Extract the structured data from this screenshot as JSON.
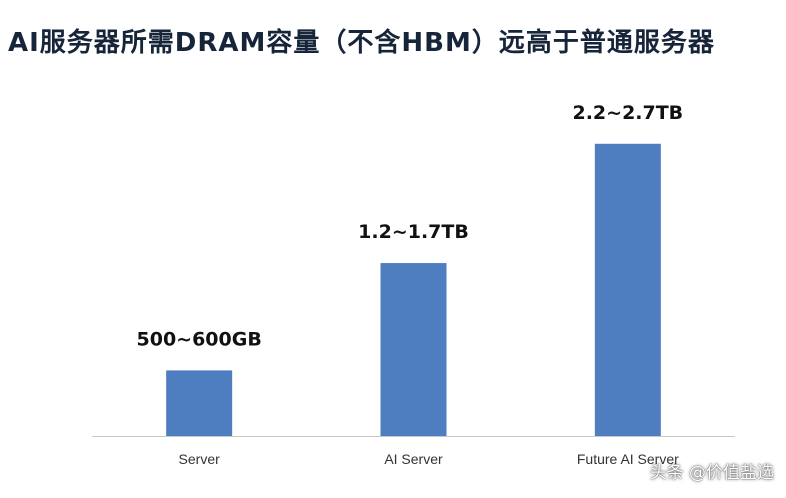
{
  "chart_data": {
    "type": "bar",
    "title": "AI服务器所需DRAM容量（不含HBM）远高于普通服务器",
    "categories": [
      "Server",
      "AI Server",
      "Future AI Server"
    ],
    "values": [
      0.55,
      1.45,
      2.45
    ],
    "value_unit": "TB",
    "data_labels": [
      "500~600GB",
      "1.2~1.7TB",
      "2.2~2.7TB"
    ],
    "xlabel": "",
    "ylabel": "",
    "ylim": [
      0,
      2.75
    ],
    "grid": false,
    "legend": "none",
    "bar_color": "#4f7ec0",
    "axis_color": "#c8c8c8"
  },
  "watermark": "头条 @价值盐选"
}
